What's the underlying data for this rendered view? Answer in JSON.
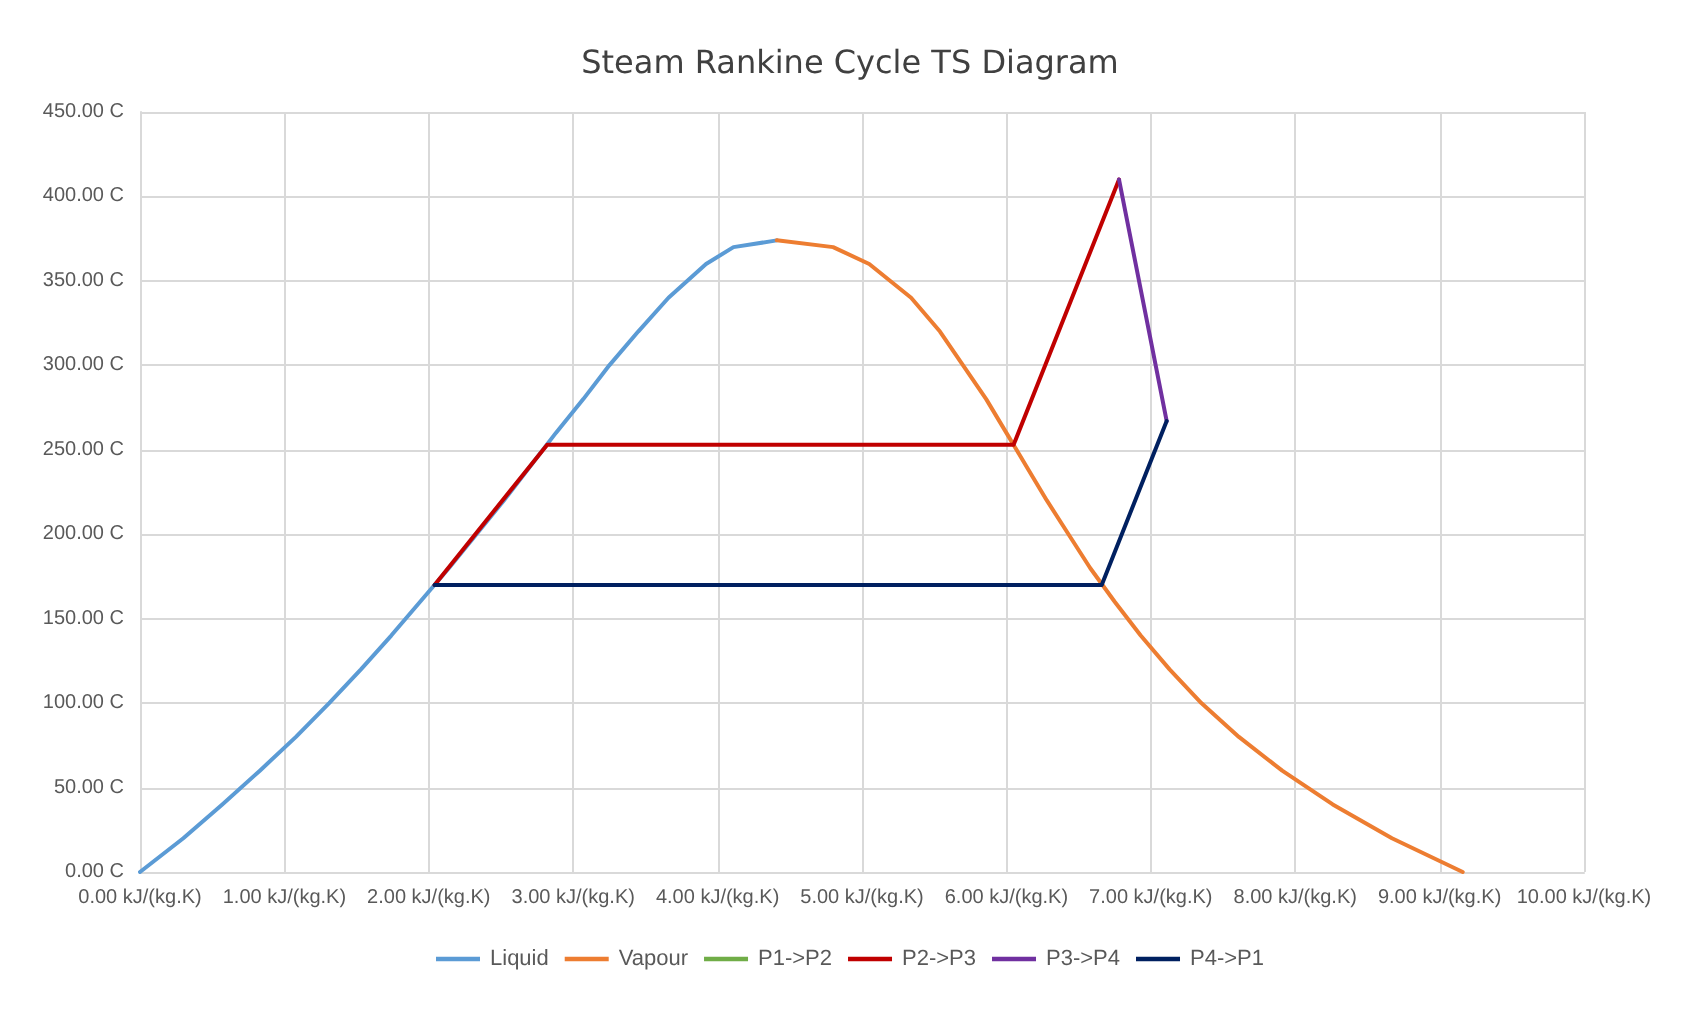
{
  "chart_data": {
    "type": "line",
    "title": "Steam Rankine Cycle TS Diagram",
    "xlim": [
      0,
      10
    ],
    "ylim": [
      0,
      450
    ],
    "xticks": [
      {
        "value": 0,
        "label": "0.00 kJ/(kg.K)"
      },
      {
        "value": 1,
        "label": "1.00 kJ/(kg.K)"
      },
      {
        "value": 2,
        "label": "2.00 kJ/(kg.K)"
      },
      {
        "value": 3,
        "label": "3.00 kJ/(kg.K)"
      },
      {
        "value": 4,
        "label": "4.00 kJ/(kg.K)"
      },
      {
        "value": 5,
        "label": "5.00 kJ/(kg.K)"
      },
      {
        "value": 6,
        "label": "6.00 kJ/(kg.K)"
      },
      {
        "value": 7,
        "label": "7.00 kJ/(kg.K)"
      },
      {
        "value": 8,
        "label": "8.00 kJ/(kg.K)"
      },
      {
        "value": 9,
        "label": "9.00 kJ/(kg.K)"
      },
      {
        "value": 10,
        "label": "10.00 kJ/(kg.K)"
      }
    ],
    "yticks": [
      {
        "value": 0,
        "label": "0.00 C"
      },
      {
        "value": 50,
        "label": "50.00 C"
      },
      {
        "value": 100,
        "label": "100.00 C"
      },
      {
        "value": 150,
        "label": "150.00 C"
      },
      {
        "value": 200,
        "label": "200.00 C"
      },
      {
        "value": 250,
        "label": "250.00 C"
      },
      {
        "value": 300,
        "label": "300.00 C"
      },
      {
        "value": 350,
        "label": "350.00 C"
      },
      {
        "value": 400,
        "label": "400.00 C"
      },
      {
        "value": 450,
        "label": "450.00 C"
      }
    ],
    "grid": true,
    "legend": "bottom",
    "marker": "none",
    "line_style": "solid",
    "series": [
      {
        "name": "Liquid",
        "color": "#5b9bd5",
        "x": [
          0,
          0.3,
          0.57,
          0.83,
          1.08,
          1.31,
          1.53,
          1.74,
          1.94,
          2.14,
          2.33,
          2.52,
          2.7,
          2.88,
          3.07,
          3.25,
          3.45,
          3.66,
          3.92,
          4.11,
          4.41
        ],
        "values": [
          0,
          20,
          40,
          60,
          80,
          100,
          120,
          140,
          160,
          180,
          200,
          220,
          240,
          260,
          280,
          300,
          320,
          340,
          360,
          370,
          374
        ]
      },
      {
        "name": "Vapour",
        "color": "#ed7d31",
        "x": [
          4.41,
          4.8,
          5.05,
          5.34,
          5.54,
          5.7,
          5.86,
          6.0,
          6.07,
          6.14,
          6.28,
          6.43,
          6.58,
          6.75,
          6.93,
          7.13,
          7.35,
          7.61,
          7.91,
          8.26,
          8.67,
          9.16
        ],
        "values": [
          374,
          370,
          360,
          340,
          320,
          300,
          280,
          260,
          250,
          240,
          220,
          200,
          180,
          160,
          140,
          120,
          100,
          80,
          60,
          40,
          20,
          0
        ]
      },
      {
        "name": "P1->P2",
        "color": "#70ad47"
      },
      {
        "name": "P2->P3",
        "color": "#c00000",
        "x": [
          2.04,
          2.82,
          6.05,
          6.78
        ],
        "values": [
          170,
          253,
          253,
          410
        ]
      },
      {
        "name": "P3->P4",
        "color": "#7030a0",
        "x": [
          6.78,
          7.11
        ],
        "values": [
          410,
          267
        ]
      },
      {
        "name": "P4->P1",
        "color": "#002060",
        "x": [
          7.11,
          6.66,
          2.04
        ],
        "values": [
          267,
          170,
          170
        ]
      }
    ]
  }
}
